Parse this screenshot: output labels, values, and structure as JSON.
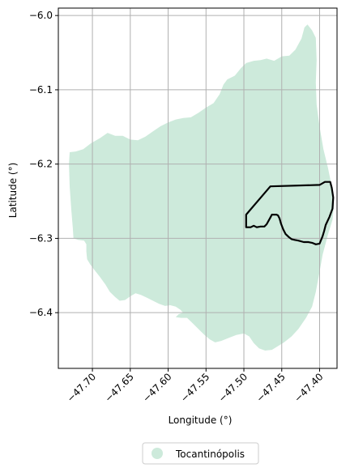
{
  "map": {
    "xlabel": "Longitude (°)",
    "ylabel": "Latitude (°)",
    "xlim": [
      -47.745,
      -47.377
    ],
    "ylim": [
      -6.475,
      -5.99
    ],
    "x_ticks": [
      {
        "value": -47.7,
        "label": "−47.70"
      },
      {
        "value": -47.65,
        "label": "−47.65"
      },
      {
        "value": -47.6,
        "label": "−47.60"
      },
      {
        "value": -47.55,
        "label": "−47.55"
      },
      {
        "value": -47.5,
        "label": "−47.50"
      },
      {
        "value": -47.45,
        "label": "−47.45"
      },
      {
        "value": -47.4,
        "label": "−47.40"
      }
    ],
    "y_ticks": [
      {
        "value": -6.0,
        "label": "−6.0"
      },
      {
        "value": -6.1,
        "label": "−6.1"
      },
      {
        "value": -6.2,
        "label": "−6.2"
      },
      {
        "value": -6.3,
        "label": "−6.3"
      },
      {
        "value": -6.4,
        "label": "−6.4"
      }
    ],
    "grid": true,
    "legend": {
      "placement": "bottom-center",
      "entries": [
        {
          "label": "Tocantinópolis",
          "color": "#cdeadb"
        }
      ]
    },
    "colors": {
      "region_fill": "#cdeadb",
      "outline_stroke": "#000000",
      "grid": "#b0b0b0"
    }
  },
  "chart_data": {
    "type": "map",
    "xlabel": "Longitude (°)",
    "ylabel": "Latitude (°)",
    "xlim": [
      -47.745,
      -47.377
    ],
    "ylim": [
      -6.475,
      -5.99
    ],
    "regions": [
      {
        "name": "Tocantinópolis",
        "color": "#cdeadb",
        "polygon": [
          [
            -47.73,
            -6.184
          ],
          [
            -47.722,
            -6.183
          ],
          [
            -47.712,
            -6.18
          ],
          [
            -47.702,
            -6.172
          ],
          [
            -47.69,
            -6.165
          ],
          [
            -47.68,
            -6.158
          ],
          [
            -47.67,
            -6.162
          ],
          [
            -47.66,
            -6.162
          ],
          [
            -47.65,
            -6.167
          ],
          [
            -47.64,
            -6.168
          ],
          [
            -47.63,
            -6.163
          ],
          [
            -47.62,
            -6.156
          ],
          [
            -47.61,
            -6.149
          ],
          [
            -47.6,
            -6.144
          ],
          [
            -47.59,
            -6.14
          ],
          [
            -47.58,
            -6.138
          ],
          [
            -47.57,
            -6.137
          ],
          [
            -47.56,
            -6.131
          ],
          [
            -47.55,
            -6.124
          ],
          [
            -47.54,
            -6.118
          ],
          [
            -47.532,
            -6.106
          ],
          [
            -47.527,
            -6.093
          ],
          [
            -47.522,
            -6.086
          ],
          [
            -47.512,
            -6.081
          ],
          [
            -47.504,
            -6.071
          ],
          [
            -47.497,
            -6.064
          ],
          [
            -47.487,
            -6.061
          ],
          [
            -47.478,
            -6.06
          ],
          [
            -47.47,
            -6.058
          ],
          [
            -47.46,
            -6.061
          ],
          [
            -47.45,
            -6.055
          ],
          [
            -47.44,
            -6.054
          ],
          [
            -47.432,
            -6.046
          ],
          [
            -47.424,
            -6.031
          ],
          [
            -47.42,
            -6.016
          ],
          [
            -47.416,
            -6.012
          ],
          [
            -47.41,
            -6.02
          ],
          [
            -47.405,
            -6.03
          ],
          [
            -47.404,
            -6.06
          ],
          [
            -47.405,
            -6.09
          ],
          [
            -47.404,
            -6.12
          ],
          [
            -47.4,
            -6.15
          ],
          [
            -47.395,
            -6.18
          ],
          [
            -47.389,
            -6.205
          ],
          [
            -47.384,
            -6.23
          ],
          [
            -47.381,
            -6.255
          ],
          [
            -47.383,
            -6.275
          ],
          [
            -47.389,
            -6.295
          ],
          [
            -47.396,
            -6.322
          ],
          [
            -47.401,
            -6.35
          ],
          [
            -47.405,
            -6.372
          ],
          [
            -47.41,
            -6.392
          ],
          [
            -47.418,
            -6.407
          ],
          [
            -47.428,
            -6.422
          ],
          [
            -47.437,
            -6.432
          ],
          [
            -47.447,
            -6.44
          ],
          [
            -47.455,
            -6.445
          ],
          [
            -47.463,
            -6.45
          ],
          [
            -47.472,
            -6.451
          ],
          [
            -47.48,
            -6.448
          ],
          [
            -47.487,
            -6.441
          ],
          [
            -47.493,
            -6.432
          ],
          [
            -47.5,
            -6.428
          ],
          [
            -47.51,
            -6.43
          ],
          [
            -47.52,
            -6.434
          ],
          [
            -47.53,
            -6.438
          ],
          [
            -47.538,
            -6.44
          ],
          [
            -47.545,
            -6.436
          ],
          [
            -47.552,
            -6.43
          ],
          [
            -47.56,
            -6.422
          ],
          [
            -47.568,
            -6.414
          ],
          [
            -47.575,
            -6.407
          ],
          [
            -47.583,
            -6.407
          ],
          [
            -47.59,
            -6.406
          ],
          [
            -47.586,
            -6.402
          ],
          [
            -47.58,
            -6.4
          ],
          [
            -47.584,
            -6.396
          ],
          [
            -47.59,
            -6.392
          ],
          [
            -47.597,
            -6.39
          ],
          [
            -47.604,
            -6.391
          ],
          [
            -47.612,
            -6.388
          ],
          [
            -47.62,
            -6.384
          ],
          [
            -47.628,
            -6.38
          ],
          [
            -47.636,
            -6.376
          ],
          [
            -47.643,
            -6.374
          ],
          [
            -47.65,
            -6.378
          ],
          [
            -47.657,
            -6.383
          ],
          [
            -47.664,
            -6.384
          ],
          [
            -47.67,
            -6.379
          ],
          [
            -47.677,
            -6.372
          ],
          [
            -47.683,
            -6.362
          ],
          [
            -47.69,
            -6.352
          ],
          [
            -47.697,
            -6.343
          ],
          [
            -47.703,
            -6.335
          ],
          [
            -47.707,
            -6.328
          ],
          [
            -47.708,
            -6.318
          ],
          [
            -47.708,
            -6.308
          ],
          [
            -47.711,
            -6.303
          ],
          [
            -47.719,
            -6.302
          ],
          [
            -47.725,
            -6.3
          ],
          [
            -47.726,
            -6.285
          ],
          [
            -47.728,
            -6.26
          ],
          [
            -47.73,
            -6.23
          ],
          [
            -47.731,
            -6.2
          ]
        ]
      }
    ],
    "outlines": [
      {
        "polygon": [
          [
            -47.497,
            -6.268
          ],
          [
            -47.465,
            -6.23
          ],
          [
            -47.4,
            -6.228
          ],
          [
            -47.393,
            -6.224
          ],
          [
            -47.386,
            -6.224
          ],
          [
            -47.384,
            -6.232
          ],
          [
            -47.382,
            -6.245
          ],
          [
            -47.383,
            -6.26
          ],
          [
            -47.387,
            -6.271
          ],
          [
            -47.392,
            -6.282
          ],
          [
            -47.394,
            -6.29
          ],
          [
            -47.396,
            -6.297
          ],
          [
            -47.4,
            -6.307
          ],
          [
            -47.405,
            -6.308
          ],
          [
            -47.41,
            -6.306
          ],
          [
            -47.415,
            -6.305
          ],
          [
            -47.421,
            -6.305
          ],
          [
            -47.428,
            -6.303
          ],
          [
            -47.433,
            -6.302
          ],
          [
            -47.437,
            -6.301
          ],
          [
            -47.441,
            -6.298
          ],
          [
            -47.445,
            -6.294
          ],
          [
            -47.448,
            -6.288
          ],
          [
            -47.451,
            -6.28
          ],
          [
            -47.453,
            -6.273
          ],
          [
            -47.455,
            -6.269
          ],
          [
            -47.457,
            -6.268
          ],
          [
            -47.463,
            -6.268
          ],
          [
            -47.465,
            -6.272
          ],
          [
            -47.47,
            -6.281
          ],
          [
            -47.473,
            -6.284
          ],
          [
            -47.478,
            -6.284
          ],
          [
            -47.483,
            -6.285
          ],
          [
            -47.487,
            -6.283
          ],
          [
            -47.491,
            -6.285
          ],
          [
            -47.497,
            -6.285
          ]
        ]
      }
    ],
    "legend": [
      {
        "label": "Tocantinópolis",
        "color": "#cdeadb"
      }
    ]
  }
}
